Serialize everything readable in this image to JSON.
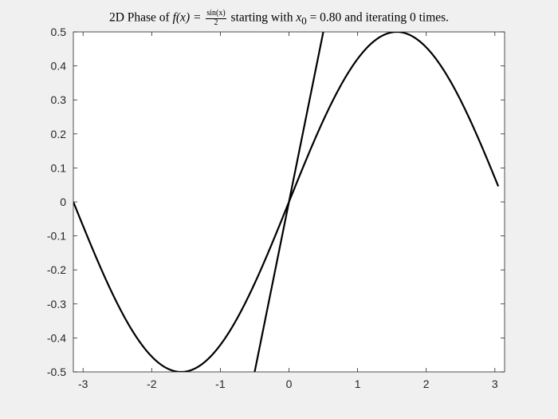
{
  "chart_data": {
    "type": "line",
    "title": {
      "prefix": "2D Phase of",
      "fx": "f(x) = ",
      "frac_num": "sin(x)",
      "frac_den": "2",
      "middle": "starting with",
      "x0_var": "x",
      "x0_sub": "0",
      "x0_rest": " = 0.80",
      "suffix": "and iterating 0 times."
    },
    "xlim": [
      -3.1416,
      3.1416
    ],
    "ylim": [
      -0.5,
      0.5
    ],
    "xticks": [
      -3,
      -2,
      -1,
      0,
      1,
      2,
      3
    ],
    "xtick_labels": [
      "-3",
      "-2",
      "-1",
      "0",
      "1",
      "2",
      "3"
    ],
    "yticks": [
      0.5,
      0.4,
      0.3,
      0.2,
      0.1,
      0,
      -0.1,
      -0.2,
      -0.3,
      -0.4,
      -0.5
    ],
    "ytick_labels": [
      "0.5",
      "0.4",
      "0.3",
      "0.2",
      "0.1",
      "0",
      "-0.1",
      "-0.2",
      "-0.3",
      "-0.4",
      "-0.5"
    ],
    "grid": false,
    "series": [
      {
        "kind": "function",
        "expr": "sin(x)/2",
        "x_range": [
          -3.1416,
          3.05
        ],
        "color": "#000000"
      },
      {
        "kind": "line",
        "x": [
          -0.5,
          0.5
        ],
        "y": [
          -0.5,
          0.5
        ],
        "color": "#000000"
      }
    ]
  }
}
